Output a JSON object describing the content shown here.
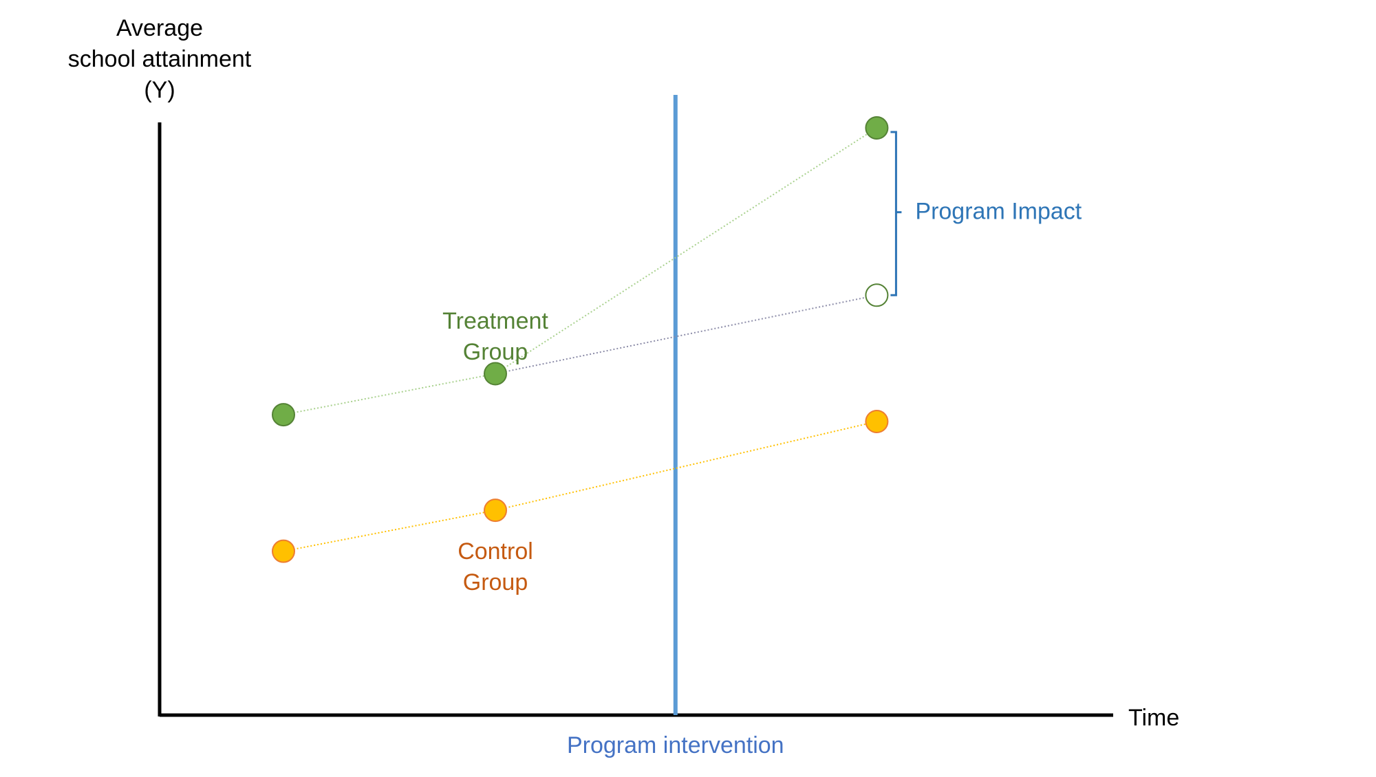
{
  "chart_data": {
    "type": "line",
    "title": "",
    "ylabel_lines": [
      "Average",
      "school attainment",
      "(Y)"
    ],
    "xlabel": "Time",
    "intervention_label": "Program intervention",
    "impact_label": "Program Impact",
    "grid": false,
    "series": [
      {
        "key": "treatment",
        "label_lines": [
          "Treatment",
          "Group"
        ],
        "color": "#70AD47",
        "dark_color": "#548235",
        "label_color": "#548235",
        "line_color": "#A9D18E",
        "points": [
          {
            "x": 1,
            "y": 4.4
          },
          {
            "x": 2,
            "y": 5.0
          },
          {
            "x": 3.8,
            "y": 8.6
          }
        ]
      },
      {
        "key": "control",
        "label_lines": [
          "Control",
          "Group"
        ],
        "color": "#FFC000",
        "dark_color": "#ED7D31",
        "label_color": "#C55A11",
        "line_color": "#FFC000",
        "points": [
          {
            "x": 1,
            "y": 2.4
          },
          {
            "x": 2,
            "y": 3.0
          },
          {
            "x": 3.8,
            "y": 4.3
          }
        ]
      }
    ],
    "counterfactual": {
      "from": {
        "x": 2,
        "y": 5.0
      },
      "to": {
        "x": 3.8,
        "y": 6.15
      },
      "line_color": "#8C8CA8",
      "circle_color": "#548235"
    },
    "intervention_x": 2.85,
    "intervention_color": "#5B9BD5",
    "intervention_label_color": "#4472C4",
    "impact_color": "#2E75B6",
    "impact_range": {
      "from": 6.15,
      "to": 8.6
    },
    "axis_color": "#000000"
  }
}
